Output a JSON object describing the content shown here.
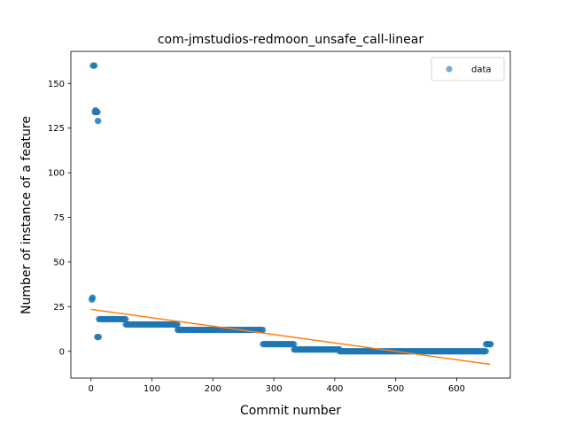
{
  "chart_data": {
    "type": "scatter",
    "title": "com-jmstudios-redmoon_unsafe_call-linear",
    "xlabel": "Commit number",
    "ylabel": "Number of instance of a feature",
    "xlim": [
      -33,
      688
    ],
    "ylim": [
      -15,
      168
    ],
    "xticks": [
      0,
      100,
      200,
      300,
      400,
      500,
      600
    ],
    "yticks": [
      0,
      25,
      50,
      75,
      100,
      125,
      150
    ],
    "legend": {
      "position": "top-right",
      "entries": [
        "data"
      ]
    },
    "colors": {
      "data": "#1f77b4",
      "fit": "#ff7f0e"
    },
    "series": [
      {
        "name": "data",
        "kind": "scatter",
        "segments": [
          {
            "x_start": 1,
            "x_end": 2,
            "y": 29
          },
          {
            "x_start": 2,
            "x_end": 3,
            "y": 30
          },
          {
            "x_start": 3,
            "x_end": 6,
            "y": 160
          },
          {
            "x_start": 6,
            "x_end": 11,
            "y": 134
          },
          {
            "x_start": 7,
            "x_end": 8,
            "y": 135
          },
          {
            "x_start": 11,
            "x_end": 12,
            "y": 129
          },
          {
            "x_start": 10,
            "x_end": 13,
            "y": 8
          },
          {
            "x_start": 13,
            "x_end": 57,
            "y": 18
          },
          {
            "x_start": 57,
            "x_end": 142,
            "y": 15
          },
          {
            "x_start": 142,
            "x_end": 282,
            "y": 12
          },
          {
            "x_start": 282,
            "x_end": 333,
            "y": 4
          },
          {
            "x_start": 333,
            "x_end": 408,
            "y": 1
          },
          {
            "x_start": 408,
            "x_end": 648,
            "y": 0
          },
          {
            "x_start": 648,
            "x_end": 656,
            "y": 4
          }
        ]
      },
      {
        "kind": "line",
        "x": [
          0,
          655
        ],
        "y": [
          23.5,
          -7.3
        ]
      }
    ]
  }
}
